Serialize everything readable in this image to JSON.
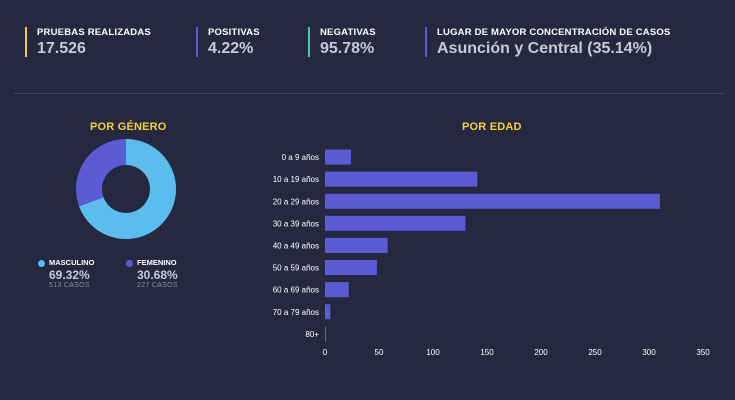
{
  "stats": [
    {
      "label": "PRUEBAS REALIZADAS",
      "value": "17.526",
      "color": "#f1c84b"
    },
    {
      "label": "POSITIVAS",
      "value": "4.22%",
      "color": "#5b5bd6"
    },
    {
      "label": "NEGATIVAS",
      "value": "95.78%",
      "color": "#3fd0a0"
    },
    {
      "label": "LUGAR DE MAYOR CONCENTRACIÓN DE CASOS",
      "value": "Asunción y Central (35.14%)",
      "color": "#5b5bd6"
    }
  ],
  "gender": {
    "title": "POR GÉNERO",
    "items": [
      {
        "label": "MASCULINO",
        "percent": "69.32%",
        "cases": "513 CASOS",
        "color": "#5bbcee",
        "fraction": 0.6932
      },
      {
        "label": "FEMENINO",
        "percent": "30.68%",
        "cases": "227 CASOS",
        "color": "#5b5bd6",
        "fraction": 0.3068
      }
    ]
  },
  "age": {
    "title": "POR EDAD"
  },
  "chart_data": {
    "type": "bar",
    "orientation": "horizontal",
    "title": "POR EDAD",
    "categories": [
      "0 a 9 años",
      "10 a 19 años",
      "20 a 29 años",
      "30 a 39 años",
      "40 a 49 años",
      "50 a 59 años",
      "60 a 69 años",
      "70 a 79 años",
      "80+"
    ],
    "values": [
      24,
      141,
      310,
      130,
      58,
      48,
      22,
      5,
      1
    ],
    "xlim": [
      0,
      350
    ],
    "xticks": [
      0,
      50,
      100,
      150,
      200,
      250,
      300,
      350
    ],
    "bar_color": "#5b5bd6",
    "grid": false
  }
}
